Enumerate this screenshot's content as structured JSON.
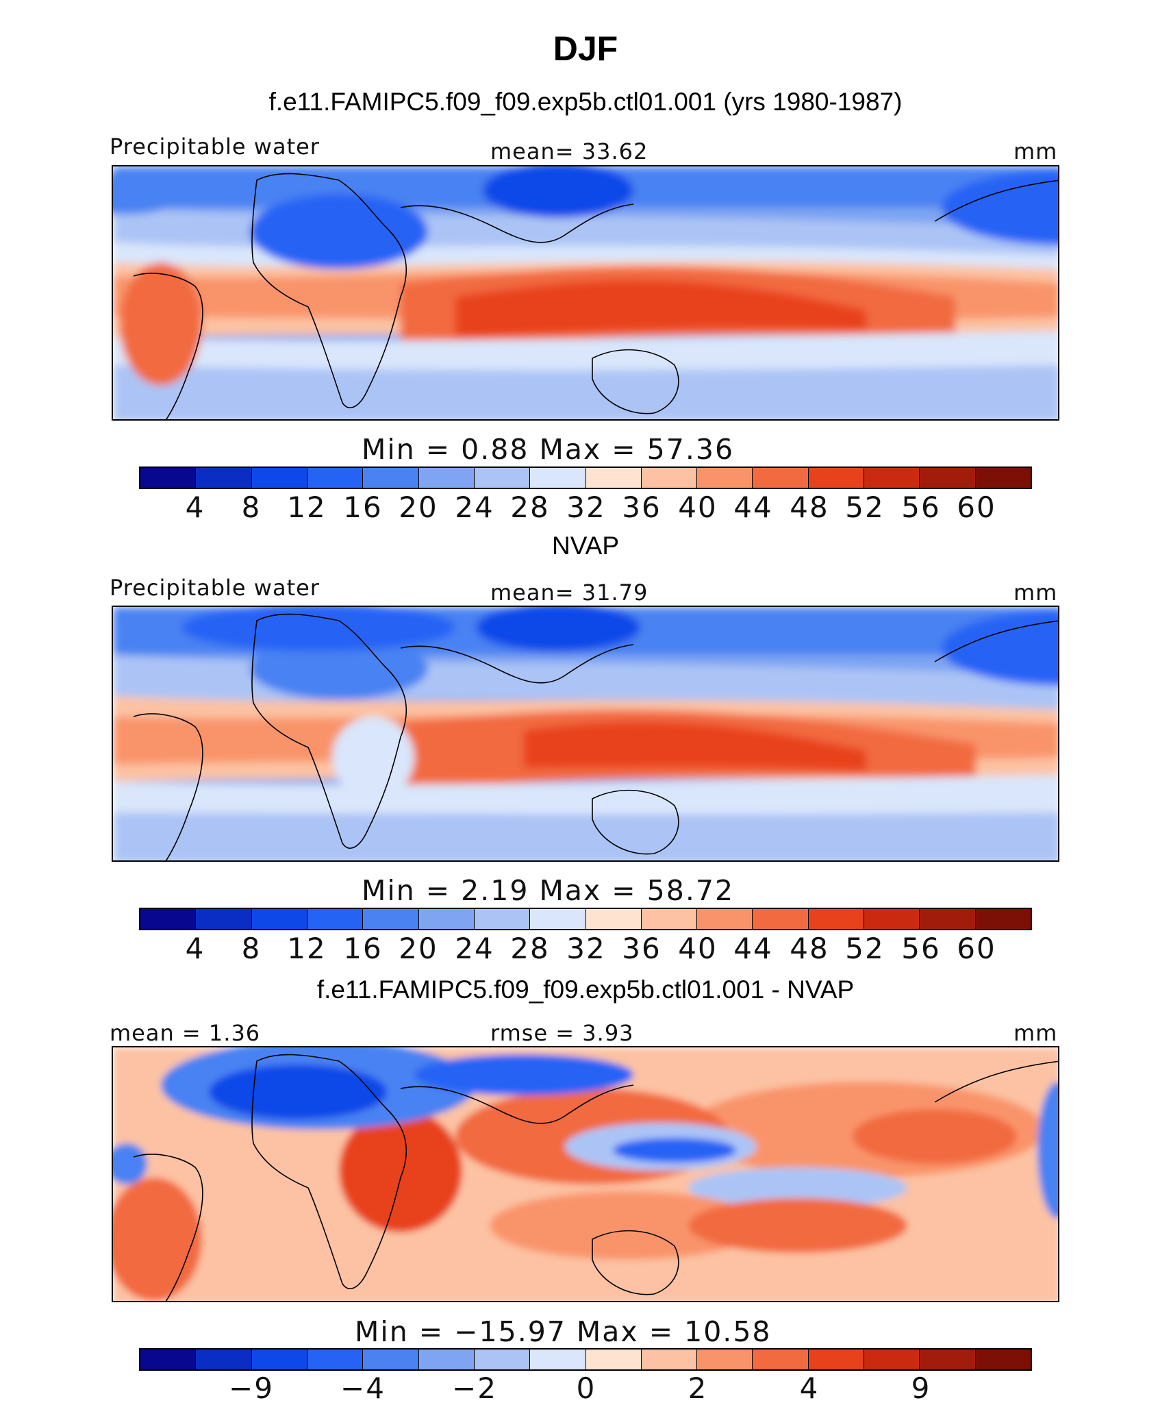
{
  "title": "DJF",
  "colors": {
    "palette": [
      "#08078f",
      "#0a2ec4",
      "#0f48e8",
      "#2563f5",
      "#4a82f2",
      "#7ea4f2",
      "#acc4f5",
      "#d9e6fb",
      "#fde3d0",
      "#fcc2a3",
      "#f9946a",
      "#f26a3f",
      "#e8421c",
      "#c92a10",
      "#a21c0b",
      "#7d1006"
    ]
  },
  "panels": [
    {
      "heading": "f.e11.FAMIPC5.f09_f09.exp5b.ctl01.001 (yrs 1980-1987)",
      "left_label": "Precipitable water",
      "center_label": "mean=   33.62",
      "units": "mm",
      "stats": "Min  =    0.88  Max  =   57.36",
      "ticks": [
        "4",
        "8",
        "12",
        "16",
        "20",
        "24",
        "28",
        "32",
        "36",
        "40",
        "44",
        "48",
        "52",
        "56",
        "60"
      ]
    },
    {
      "heading": "NVAP",
      "left_label": "Precipitable water",
      "center_label": "mean=   31.79",
      "units": "mm",
      "stats": "Min  =    2.19  Max  =   58.72",
      "ticks": [
        "4",
        "8",
        "12",
        "16",
        "20",
        "24",
        "28",
        "32",
        "36",
        "40",
        "44",
        "48",
        "52",
        "56",
        "60"
      ]
    },
    {
      "heading": "f.e11.FAMIPC5.f09_f09.exp5b.ctl01.001 - NVAP",
      "left_label": "mean =    1.36",
      "center_label": "rmse =    3.93",
      "units": "mm",
      "stats": "Min  = −15.97  Max  =   10.58",
      "ticks": [
        "−9",
        "−4",
        "−2",
        "0",
        "2",
        "4",
        "9"
      ]
    }
  ]
}
